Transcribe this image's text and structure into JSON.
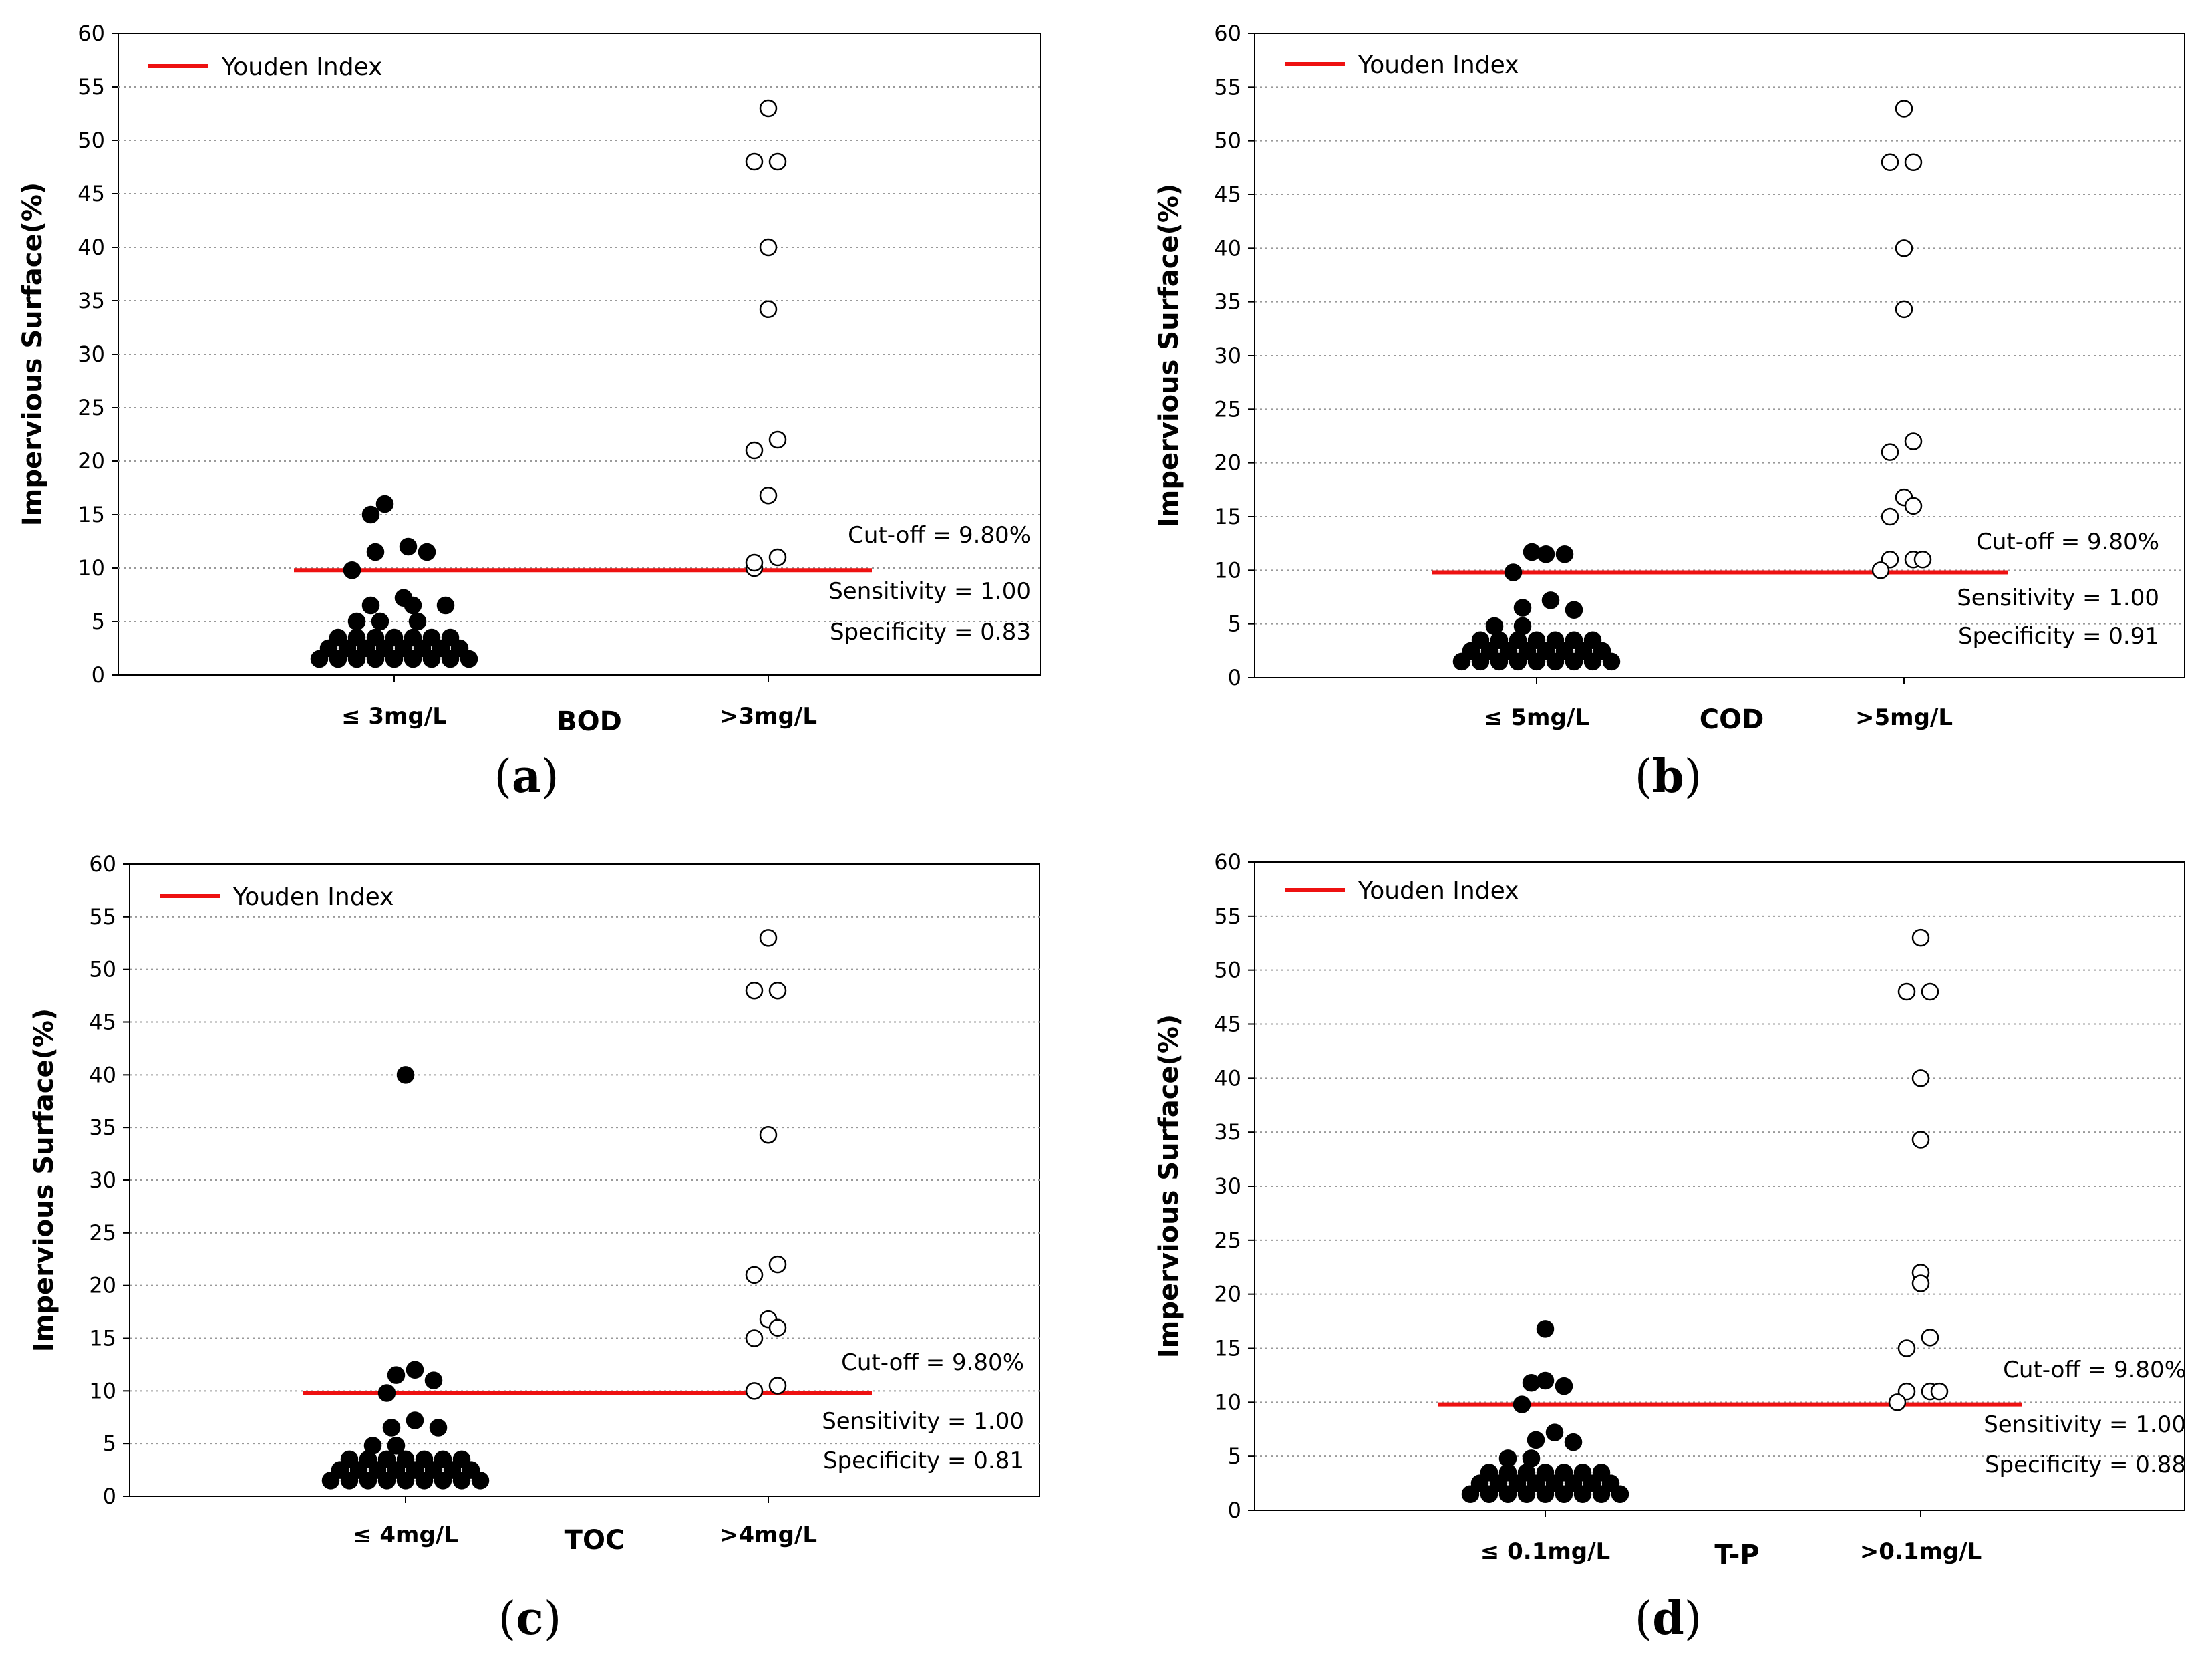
{
  "colors": {
    "cutoff_line": "#ee1111",
    "grid": "#999999",
    "axis": "#000000",
    "filled_marker": "#000000",
    "open_marker_fill": "#ffffff"
  },
  "chart_data": [
    {
      "type": "scatter",
      "panel": "(a)",
      "panel_letter": "a",
      "parameter": "BOD",
      "ylabel": "Impervious Surface(%)",
      "ylim": [
        0,
        60
      ],
      "yticks": [
        0,
        5,
        10,
        15,
        20,
        25,
        30,
        35,
        40,
        45,
        50,
        55,
        60
      ],
      "grid": "horizontal dotted",
      "legend": {
        "label": "Youden Index",
        "placement": "top-left"
      },
      "categories": [
        "≤ 3mg/L",
        ">3mg/L"
      ],
      "cutoff": 9.8,
      "stats": [
        "Cut-off  =  9.80%",
        "Sensitivity  =  1.00",
        "Specificity  =  0.83"
      ],
      "series": [
        {
          "category": "≤ 3mg/L",
          "marker": "filled",
          "points": [
            [
              -0.02,
              16
            ],
            [
              -0.05,
              15
            ],
            [
              -0.04,
              11.5
            ],
            [
              0.03,
              12
            ],
            [
              0.07,
              11.5
            ],
            [
              -0.09,
              9.8
            ],
            [
              0.02,
              7.2
            ],
            [
              -0.05,
              6.5
            ],
            [
              0.04,
              6.5
            ],
            [
              0.11,
              6.5
            ],
            [
              -0.08,
              5
            ],
            [
              -0.03,
              5
            ],
            [
              0.05,
              5
            ],
            [
              -0.12,
              3.5
            ],
            [
              -0.08,
              3.5
            ],
            [
              -0.04,
              3.5
            ],
            [
              0,
              3.5
            ],
            [
              0.04,
              3.5
            ],
            [
              0.08,
              3.5
            ],
            [
              0.12,
              3.5
            ],
            [
              -0.14,
              2.5
            ],
            [
              -0.1,
              2.5
            ],
            [
              -0.06,
              2.5
            ],
            [
              -0.02,
              2.5
            ],
            [
              0.02,
              2.5
            ],
            [
              0.06,
              2.5
            ],
            [
              0.1,
              2.5
            ],
            [
              0.14,
              2.5
            ],
            [
              -0.16,
              1.5
            ],
            [
              -0.12,
              1.5
            ],
            [
              -0.08,
              1.5
            ],
            [
              -0.04,
              1.5
            ],
            [
              0,
              1.5
            ],
            [
              0.04,
              1.5
            ],
            [
              0.08,
              1.5
            ],
            [
              0.12,
              1.5
            ],
            [
              0.16,
              1.5
            ]
          ]
        },
        {
          "category": ">3mg/L",
          "marker": "open",
          "points": [
            [
              0,
              53
            ],
            [
              -0.03,
              48
            ],
            [
              0.02,
              48
            ],
            [
              0,
              40
            ],
            [
              0,
              34.2
            ],
            [
              -0.03,
              21
            ],
            [
              0.02,
              22
            ],
            [
              0,
              16.8
            ],
            [
              -0.03,
              10
            ],
            [
              0.02,
              11
            ],
            [
              -0.03,
              10.5
            ]
          ]
        }
      ]
    },
    {
      "type": "scatter",
      "panel": "(b)",
      "panel_letter": "b",
      "parameter": "COD",
      "ylabel": "Impervious Surface(%)",
      "ylim": [
        0,
        60
      ],
      "yticks": [
        0,
        5,
        10,
        15,
        20,
        25,
        30,
        35,
        40,
        45,
        50,
        55,
        60
      ],
      "grid": "horizontal dotted",
      "legend": {
        "label": "Youden Index",
        "placement": "top-left"
      },
      "categories": [
        "≤ 5mg/L",
        ">5mg/L"
      ],
      "cutoff": 9.8,
      "stats": [
        "Cut-off  =  9.80%",
        "Sensitivity  =  1.00",
        "Specificity  =  0.91"
      ],
      "series": [
        {
          "category": "≤ 5mg/L",
          "marker": "filled",
          "points": [
            [
              -0.01,
              11.7
            ],
            [
              0.02,
              11.5
            ],
            [
              0.06,
              11.5
            ],
            [
              -0.05,
              9.8
            ],
            [
              0.03,
              7.2
            ],
            [
              -0.03,
              6.5
            ],
            [
              0.08,
              6.3
            ],
            [
              -0.09,
              4.8
            ],
            [
              -0.03,
              4.8
            ],
            [
              -0.12,
              3.5
            ],
            [
              -0.08,
              3.5
            ],
            [
              -0.04,
              3.5
            ],
            [
              0,
              3.5
            ],
            [
              0.04,
              3.5
            ],
            [
              0.08,
              3.5
            ],
            [
              0.12,
              3.5
            ],
            [
              -0.14,
              2.5
            ],
            [
              -0.1,
              2.5
            ],
            [
              -0.06,
              2.5
            ],
            [
              -0.02,
              2.5
            ],
            [
              0.02,
              2.5
            ],
            [
              0.06,
              2.5
            ],
            [
              0.1,
              2.5
            ],
            [
              0.14,
              2.5
            ],
            [
              -0.16,
              1.5
            ],
            [
              -0.12,
              1.5
            ],
            [
              -0.08,
              1.5
            ],
            [
              -0.04,
              1.5
            ],
            [
              0,
              1.5
            ],
            [
              0.04,
              1.5
            ],
            [
              0.08,
              1.5
            ],
            [
              0.12,
              1.5
            ],
            [
              0.16,
              1.5
            ]
          ]
        },
        {
          "category": ">5mg/L",
          "marker": "open",
          "points": [
            [
              0,
              53
            ],
            [
              -0.03,
              48
            ],
            [
              0.02,
              48
            ],
            [
              0,
              40
            ],
            [
              0,
              34.3
            ],
            [
              -0.03,
              21
            ],
            [
              0.02,
              22
            ],
            [
              0,
              16.8
            ],
            [
              0.02,
              16
            ],
            [
              -0.03,
              15
            ],
            [
              -0.03,
              11
            ],
            [
              0.02,
              11
            ],
            [
              0.04,
              11
            ],
            [
              -0.05,
              10
            ]
          ]
        }
      ]
    },
    {
      "type": "scatter",
      "panel": "(c)",
      "panel_letter": "c",
      "parameter": "TOC",
      "ylabel": "Impervious Surface(%)",
      "ylim": [
        0,
        60
      ],
      "yticks": [
        0,
        5,
        10,
        15,
        20,
        25,
        30,
        35,
        40,
        45,
        50,
        55,
        60
      ],
      "grid": "horizontal dotted",
      "legend": {
        "label": "Youden Index",
        "placement": "top-left"
      },
      "categories": [
        "≤ 4mg/L",
        ">4mg/L"
      ],
      "cutoff": 9.8,
      "stats": [
        "Cut-off  =  9.80%",
        "Sensitivity  =  1.00",
        "Specificity  =  0.81"
      ],
      "series": [
        {
          "category": "≤ 4mg/L",
          "marker": "filled",
          "points": [
            [
              0,
              40
            ],
            [
              -0.02,
              11.5
            ],
            [
              0.02,
              12
            ],
            [
              0.06,
              11
            ],
            [
              -0.04,
              9.8
            ],
            [
              0.02,
              7.2
            ],
            [
              -0.03,
              6.5
            ],
            [
              0.07,
              6.5
            ],
            [
              -0.07,
              4.8
            ],
            [
              -0.02,
              4.8
            ],
            [
              -0.12,
              3.5
            ],
            [
              -0.08,
              3.5
            ],
            [
              -0.04,
              3.5
            ],
            [
              0,
              3.5
            ],
            [
              0.04,
              3.5
            ],
            [
              0.08,
              3.5
            ],
            [
              0.12,
              3.5
            ],
            [
              -0.14,
              2.5
            ],
            [
              -0.1,
              2.5
            ],
            [
              -0.06,
              2.5
            ],
            [
              -0.02,
              2.5
            ],
            [
              0.02,
              2.5
            ],
            [
              0.06,
              2.5
            ],
            [
              0.1,
              2.5
            ],
            [
              0.14,
              2.5
            ],
            [
              -0.16,
              1.5
            ],
            [
              -0.12,
              1.5
            ],
            [
              -0.08,
              1.5
            ],
            [
              -0.04,
              1.5
            ],
            [
              0,
              1.5
            ],
            [
              0.04,
              1.5
            ],
            [
              0.08,
              1.5
            ],
            [
              0.12,
              1.5
            ],
            [
              0.16,
              1.5
            ]
          ]
        },
        {
          "category": ">4mg/L",
          "marker": "open",
          "points": [
            [
              0,
              53
            ],
            [
              -0.03,
              48
            ],
            [
              0.02,
              48
            ],
            [
              0,
              34.3
            ],
            [
              -0.03,
              21
            ],
            [
              0.02,
              22
            ],
            [
              0,
              16.8
            ],
            [
              0.02,
              16
            ],
            [
              -0.03,
              15
            ],
            [
              -0.03,
              10
            ],
            [
              0.02,
              10.5
            ]
          ]
        }
      ]
    },
    {
      "type": "scatter",
      "panel": "(d)",
      "panel_letter": "d",
      "parameter": "T-P",
      "ylabel": "Impervious Surface(%)",
      "ylim": [
        0,
        60
      ],
      "yticks": [
        0,
        5,
        10,
        15,
        20,
        25,
        30,
        35,
        40,
        45,
        50,
        55,
        60
      ],
      "grid": "horizontal dotted",
      "legend": {
        "label": "Youden Index",
        "placement": "top-left"
      },
      "categories": [
        "≤ 0.1mg/L",
        ">0.1mg/L"
      ],
      "cutoff": 9.8,
      "stats": [
        "Cut-off  =  9.80%",
        "Sensitivity  =  1.00",
        "Specificity  =  0.88"
      ],
      "series": [
        {
          "category": "≤ 0.1mg/L",
          "marker": "filled",
          "points": [
            [
              0,
              16.8
            ],
            [
              0,
              12
            ],
            [
              0.04,
              11.5
            ],
            [
              -0.03,
              11.8
            ],
            [
              -0.05,
              9.8
            ],
            [
              0.02,
              7.2
            ],
            [
              -0.02,
              6.5
            ],
            [
              0.06,
              6.3
            ],
            [
              -0.08,
              4.8
            ],
            [
              -0.03,
              4.8
            ],
            [
              -0.12,
              3.5
            ],
            [
              -0.08,
              3.5
            ],
            [
              -0.04,
              3.5
            ],
            [
              0,
              3.5
            ],
            [
              0.04,
              3.5
            ],
            [
              0.08,
              3.5
            ],
            [
              0.12,
              3.5
            ],
            [
              -0.14,
              2.5
            ],
            [
              -0.1,
              2.5
            ],
            [
              -0.06,
              2.5
            ],
            [
              -0.02,
              2.5
            ],
            [
              0.02,
              2.5
            ],
            [
              0.06,
              2.5
            ],
            [
              0.1,
              2.5
            ],
            [
              0.14,
              2.5
            ],
            [
              -0.16,
              1.5
            ],
            [
              -0.12,
              1.5
            ],
            [
              -0.08,
              1.5
            ],
            [
              -0.04,
              1.5
            ],
            [
              0,
              1.5
            ],
            [
              0.04,
              1.5
            ],
            [
              0.08,
              1.5
            ],
            [
              0.12,
              1.5
            ],
            [
              0.16,
              1.5
            ]
          ]
        },
        {
          "category": ">0.1mg/L",
          "marker": "open",
          "points": [
            [
              0,
              53
            ],
            [
              -0.03,
              48
            ],
            [
              0.02,
              48
            ],
            [
              0,
              40
            ],
            [
              0,
              34.3
            ],
            [
              0,
              22
            ],
            [
              0,
              21
            ],
            [
              0.02,
              16
            ],
            [
              -0.03,
              15
            ],
            [
              -0.03,
              11
            ],
            [
              0.02,
              11
            ],
            [
              0.04,
              11
            ],
            [
              -0.05,
              10
            ]
          ]
        }
      ]
    }
  ]
}
